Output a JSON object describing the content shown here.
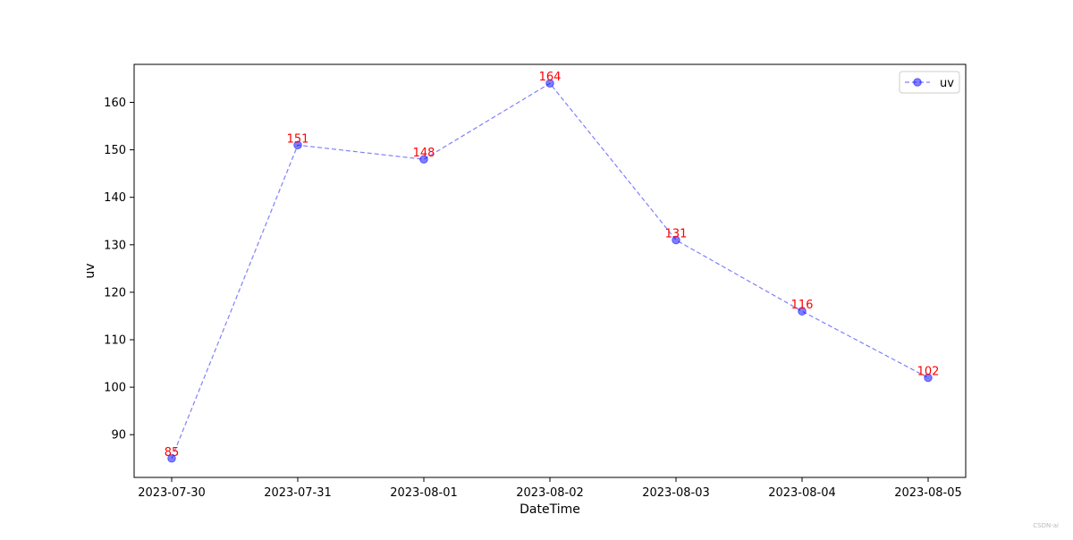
{
  "chart_data": {
    "type": "line",
    "categories": [
      "2023-07-30",
      "2023-07-31",
      "2023-08-01",
      "2023-08-02",
      "2023-08-03",
      "2023-08-04",
      "2023-08-05"
    ],
    "series": [
      {
        "name": "uv",
        "values": [
          85,
          151,
          148,
          164,
          131,
          116,
          102
        ],
        "color": "#0000ff",
        "line_style": "dashed",
        "marker": "circle",
        "alpha": 0.5
      }
    ],
    "data_labels": [
      "85",
      "151",
      "148",
      "164",
      "131",
      "116",
      "102"
    ],
    "data_label_color": "#ff0000",
    "xlabel": "DateTime",
    "ylabel": "uv",
    "ylim": [
      81,
      168
    ],
    "yticks": [
      90,
      100,
      110,
      120,
      130,
      140,
      150,
      160
    ],
    "legend": {
      "position": "top-right",
      "entries": [
        "uv"
      ]
    },
    "grid": false
  },
  "watermark": "CSDN-ai"
}
